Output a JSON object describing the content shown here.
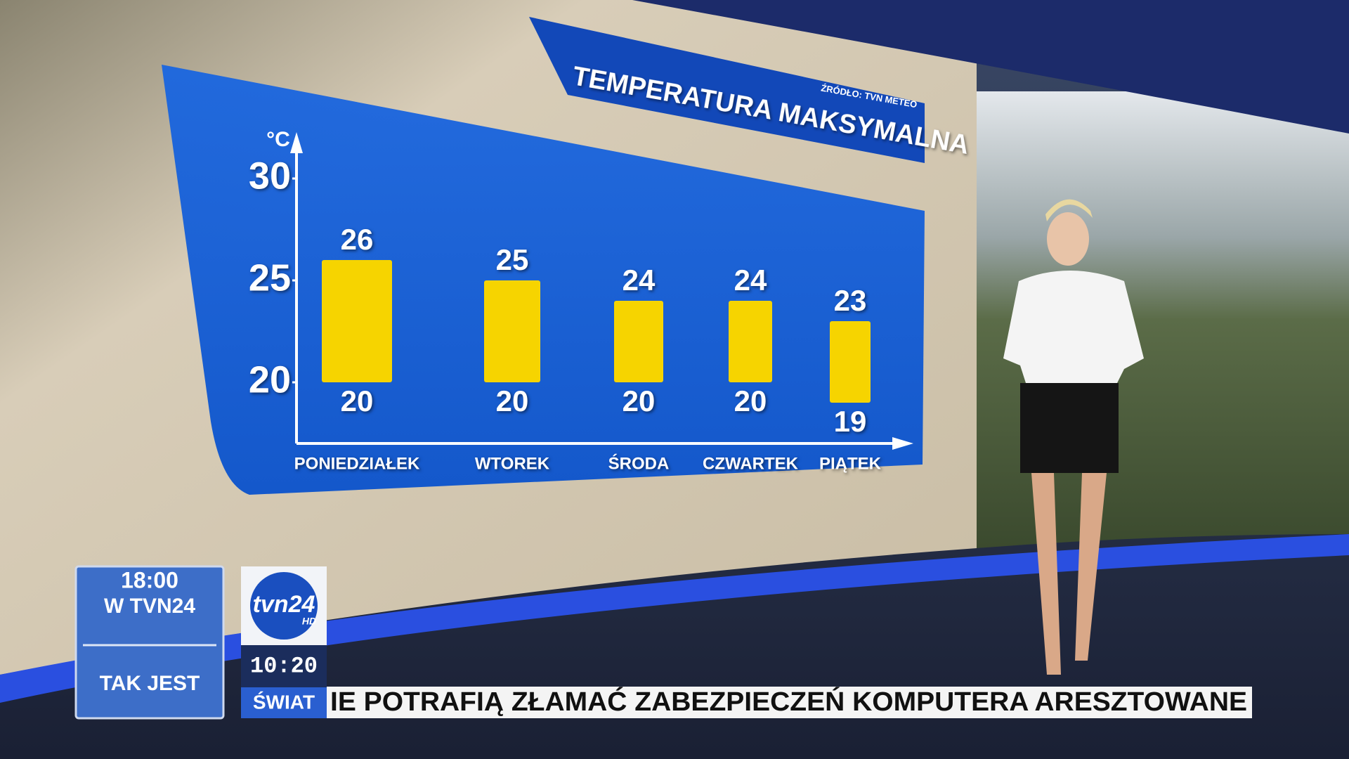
{
  "chart_data": {
    "type": "range-bar",
    "title": "TEMPERATURA MAKSYMALNA",
    "source": "ŹRÓDŁO: TVN METEO",
    "y_label": "°C",
    "categories": [
      "PONIEDZIAŁEK",
      "WTOREK",
      "ŚRODA",
      "CZWARTEK",
      "PIĄTEK"
    ],
    "low": [
      20,
      20,
      20,
      20,
      19
    ],
    "high": [
      26,
      25,
      24,
      24,
      23
    ],
    "color": "#f6d400",
    "ylim": [
      17,
      32
    ],
    "yticks": [
      20,
      25,
      30
    ]
  },
  "promo": {
    "time": "18:00",
    "channel": "W TVN24",
    "show": "TAK JEST"
  },
  "logo": {
    "name": "tvn24",
    "hd": "HD"
  },
  "clock": "10:20",
  "ticker": {
    "section": "ŚWIAT",
    "text": "IE POTRAFIĄ ZŁAMAĆ ZABEZPIECZEŃ KOMPUTERA ARESZTOWANE"
  }
}
